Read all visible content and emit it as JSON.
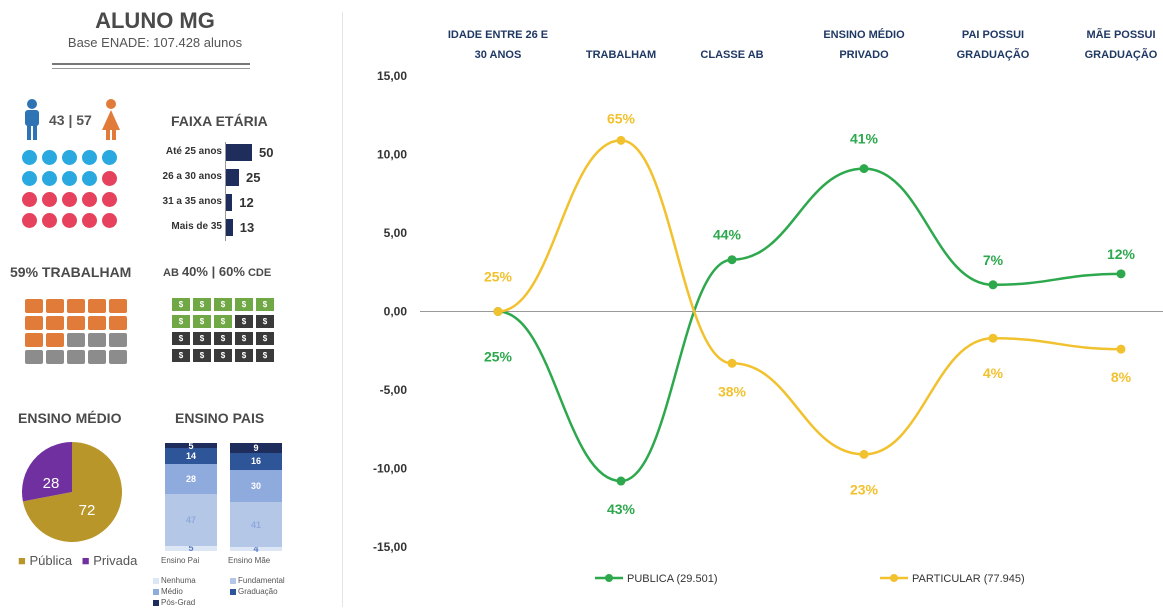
{
  "header": {
    "title": "ALUNO MG",
    "subtitle": "Base ENADE: 107.428 alunos"
  },
  "gender": {
    "text": "43 | 57",
    "male_color": "#2e74b5",
    "female_color": "#e07b39"
  },
  "faixa": {
    "title": "FAIXA ETÁRIA",
    "rows": [
      {
        "label": "Até 25 anos",
        "value": 50
      },
      {
        "label": "26 a 30 anos",
        "value": 25
      },
      {
        "label": "31 a 35 anos",
        "value": 12
      },
      {
        "label": "Mais de 35",
        "value": 13
      }
    ]
  },
  "trabalham": {
    "title": "59% TRABALHAM"
  },
  "classe": {
    "prefix": "AB ",
    "ab": "40%",
    "sep": " | ",
    "cde": "60%",
    "suffix": " CDE"
  },
  "ensino_medio": {
    "title": "ENSINO MÉDIO",
    "slices": [
      {
        "label": "Pública",
        "value": 72,
        "color": "#b8962a"
      },
      {
        "label": "Privada",
        "value": 28,
        "color": "#7030a0"
      }
    ]
  },
  "ensino_pais": {
    "title": "ENSINO PAIS",
    "bars": [
      {
        "label": "Ensino Pai",
        "segments": [
          5,
          47,
          28,
          14,
          5
        ]
      },
      {
        "label": "Ensino Mãe",
        "segments": [
          4,
          41,
          30,
          16,
          9
        ]
      }
    ],
    "legend": [
      "Nenhuma",
      "Fundamental",
      "Médio",
      "Graduação",
      "Pós-Grad"
    ],
    "colors": [
      "#dce6f5",
      "#b4c7e7",
      "#8faadc",
      "#2e5597",
      "#1f2d5c"
    ]
  },
  "chart_data": {
    "type": "line",
    "categories": [
      "IDADE ENTRE 26 E 30 ANOS",
      "TRABALHAM",
      "CLASSE AB",
      "ENSINO MÉDIO PRIVADO",
      "PAI POSSUI GRADUAÇÃO",
      "MÃE POSSUI GRADUAÇÃO"
    ],
    "ylim": [
      -15,
      15
    ],
    "yticks": [
      "15,00",
      "10,00",
      "5,00",
      "0,00",
      "-5,00",
      "-10,00",
      "-15,00"
    ],
    "series": [
      {
        "name": "PUBLICA (29.501)",
        "color": "#2da84d",
        "values": [
          0,
          -10.8,
          3.3,
          9.1,
          1.7,
          2.4
        ],
        "labels": [
          "25%",
          "43%",
          "44%",
          "41%",
          "7%",
          "12%"
        ]
      },
      {
        "name": "PARTICULAR (77.945)",
        "color": "#f2c12e",
        "values": [
          0,
          10.9,
          -3.3,
          -9.1,
          -1.7,
          -2.4
        ],
        "labels": [
          "25%",
          "65%",
          "38%",
          "23%",
          "4%",
          "8%"
        ]
      }
    ]
  }
}
